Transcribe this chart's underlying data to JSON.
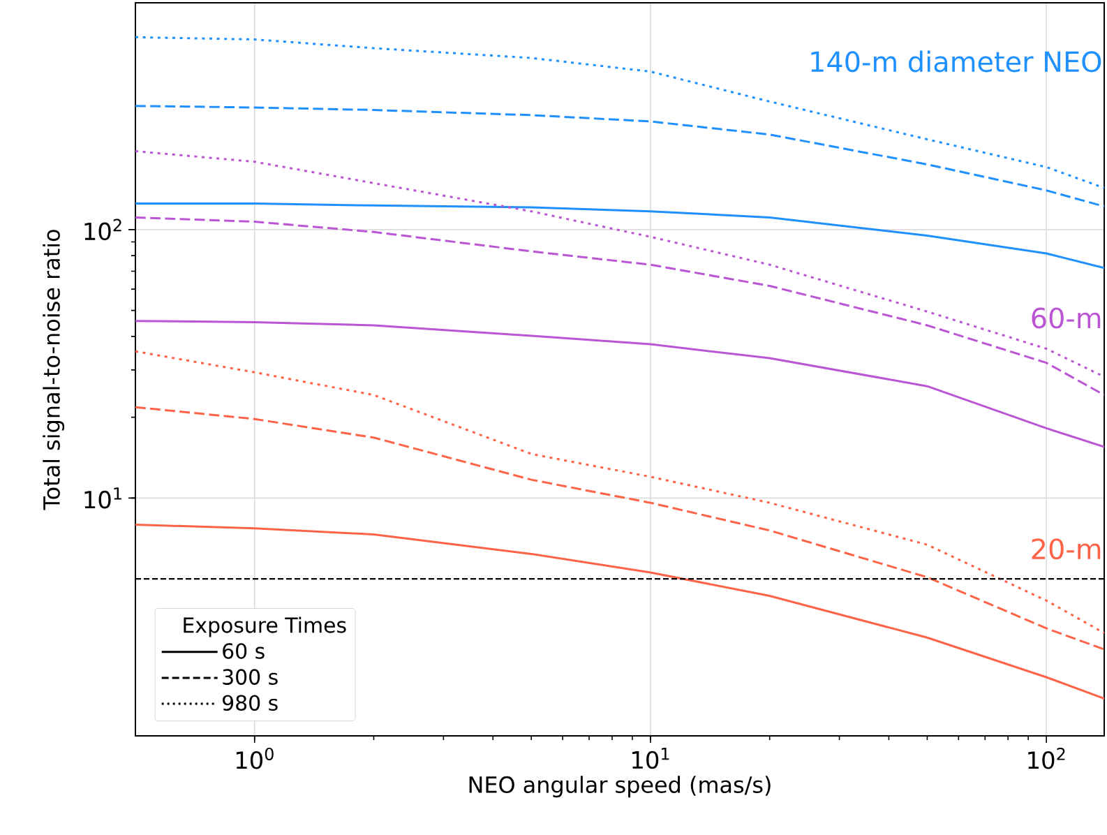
{
  "chart_data": {
    "type": "line",
    "xlabel": "NEO angular speed (mas/s)",
    "ylabel": "Total signal-to-noise ratio",
    "log": "xy",
    "grid": true,
    "legend": "bottom left",
    "legend_title": "Exposure Times",
    "xlim": [
      0.5,
      140
    ],
    "ylim": [
      1.3,
      700
    ],
    "xticks": [
      {
        "value": 1,
        "label": "10$^{0}$"
      },
      {
        "value": 10,
        "label": "10$^{1}$"
      },
      {
        "value": 100,
        "label": "10$^{2}$"
      }
    ],
    "yticks": [
      {
        "value": 10,
        "label": "10$^{1}$"
      },
      {
        "value": 100,
        "label": "10$^{2}$"
      }
    ],
    "x": [
      0.5,
      1,
      2,
      5,
      10,
      20,
      50,
      100,
      140
    ],
    "series": [
      {
        "color": "#1e90ff",
        "line_style": "solid",
        "values": [
          125,
          125,
          123,
          121,
          117,
          111,
          95,
          81.5,
          72
        ]
      },
      {
        "color": "#1e90ff",
        "line_style": "dashed",
        "values": [
          289,
          285,
          279,
          267,
          253,
          226,
          175,
          140,
          122
        ]
      },
      {
        "color": "#1e90ff",
        "line_style": "dotted",
        "values": [
          521,
          511,
          474,
          436,
          388,
          300,
          217,
          171,
          143
        ]
      },
      {
        "color": "#ba55d3",
        "line_style": "solid",
        "values": [
          45.7,
          45.2,
          44,
          40.2,
          37.4,
          33.2,
          26.1,
          18.2,
          15.5
        ]
      },
      {
        "color": "#ba55d3",
        "line_style": "dashed",
        "values": [
          111,
          107,
          98,
          83,
          74,
          61.7,
          44,
          31.9,
          24.2
        ]
      },
      {
        "color": "#ba55d3",
        "line_style": "dotted",
        "values": [
          196,
          179,
          149,
          117,
          94,
          74,
          49.5,
          36,
          28.3
        ]
      },
      {
        "color": "#ff6347",
        "line_style": "solid",
        "values": [
          7.96,
          7.71,
          7.32,
          6.19,
          5.28,
          4.32,
          3.02,
          2.15,
          1.79
        ]
      },
      {
        "color": "#ff6347",
        "line_style": "dashed",
        "values": [
          21.8,
          19.7,
          16.8,
          11.7,
          9.6,
          7.57,
          5.07,
          3.27,
          2.73
        ]
      },
      {
        "color": "#ff6347",
        "line_style": "dotted",
        "values": [
          35.2,
          29.4,
          24.2,
          14.6,
          12.0,
          9.6,
          6.7,
          4.15,
          3.14
        ]
      },
      {
        "name": "60 s",
        "color": "#000000",
        "line_style": "solid",
        "values": [
          null,
          null,
          null,
          null,
          null,
          null,
          null,
          null,
          null
        ]
      },
      {
        "name": "300 s",
        "color": "#000000",
        "line_style": "dashed",
        "values": [
          null,
          null,
          null,
          null,
          null,
          null,
          null,
          null,
          null
        ]
      },
      {
        "name": "980 s",
        "color": "#000000",
        "line_style": "dotted",
        "values": [
          null,
          null,
          null,
          null,
          null,
          null,
          null,
          null,
          null
        ]
      }
    ],
    "ref_lines": [
      {
        "axis": "y",
        "value": 5,
        "color": "#000000",
        "line_style": "dashed"
      }
    ],
    "annotations": [
      "140-m diameter NEO",
      "60-m",
      "20-m"
    ]
  }
}
